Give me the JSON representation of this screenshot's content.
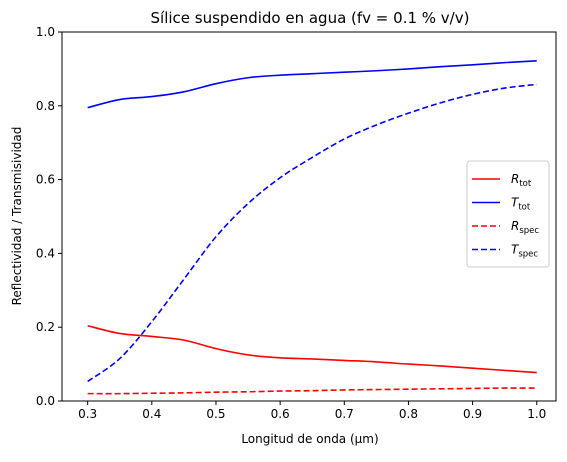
{
  "chart_data": {
    "type": "line",
    "title": "Sílice suspendido en agua (fv = 0.1 % v/v)",
    "xlabel": "Longitud de onda (μm)",
    "ylabel": "Reflectividad / Transmisividad",
    "xlim": [
      0.26,
      1.03
    ],
    "ylim": [
      0.0,
      1.0
    ],
    "xticks": [
      0.3,
      0.4,
      0.5,
      0.6,
      0.7,
      0.8,
      0.9,
      1.0
    ],
    "xtick_labels": [
      "0.3",
      "0.4",
      "0.5",
      "0.6",
      "0.7",
      "0.8",
      "0.9",
      "1.0"
    ],
    "yticks": [
      0.0,
      0.2,
      0.4,
      0.6,
      0.8,
      1.0
    ],
    "ytick_labels": [
      "0.0",
      "0.2",
      "0.4",
      "0.6",
      "0.8",
      "1.0"
    ],
    "grid": false,
    "legend_position": "center-right",
    "x": [
      0.3,
      0.35,
      0.4,
      0.45,
      0.5,
      0.55,
      0.6,
      0.65,
      0.7,
      0.75,
      0.8,
      0.85,
      0.9,
      0.95,
      1.0
    ],
    "series": [
      {
        "name": "R_tot",
        "label_main": "R",
        "label_sub": "tot",
        "color": "#ff0000",
        "dash": "solid",
        "values": [
          0.204,
          0.183,
          0.175,
          0.165,
          0.142,
          0.125,
          0.117,
          0.114,
          0.11,
          0.106,
          0.1,
          0.095,
          0.089,
          0.083,
          0.077
        ]
      },
      {
        "name": "T_tot",
        "label_main": "T",
        "label_sub": "tot",
        "color": "#0000ff",
        "dash": "solid",
        "values": [
          0.795,
          0.817,
          0.825,
          0.838,
          0.86,
          0.876,
          0.883,
          0.887,
          0.891,
          0.895,
          0.9,
          0.906,
          0.911,
          0.917,
          0.922
        ]
      },
      {
        "name": "R_spec",
        "label_main": "R",
        "label_sub": "spec",
        "color": "#ff0000",
        "dash": "dashed",
        "values": [
          0.02,
          0.02,
          0.021,
          0.022,
          0.024,
          0.025,
          0.027,
          0.028,
          0.03,
          0.031,
          0.032,
          0.033,
          0.034,
          0.035,
          0.035
        ]
      },
      {
        "name": "T_spec",
        "label_main": "T",
        "label_sub": "spec",
        "color": "#0000ff",
        "dash": "dashed",
        "values": [
          0.053,
          0.115,
          0.215,
          0.33,
          0.445,
          0.535,
          0.605,
          0.66,
          0.71,
          0.748,
          0.78,
          0.808,
          0.831,
          0.848,
          0.858
        ]
      }
    ]
  }
}
